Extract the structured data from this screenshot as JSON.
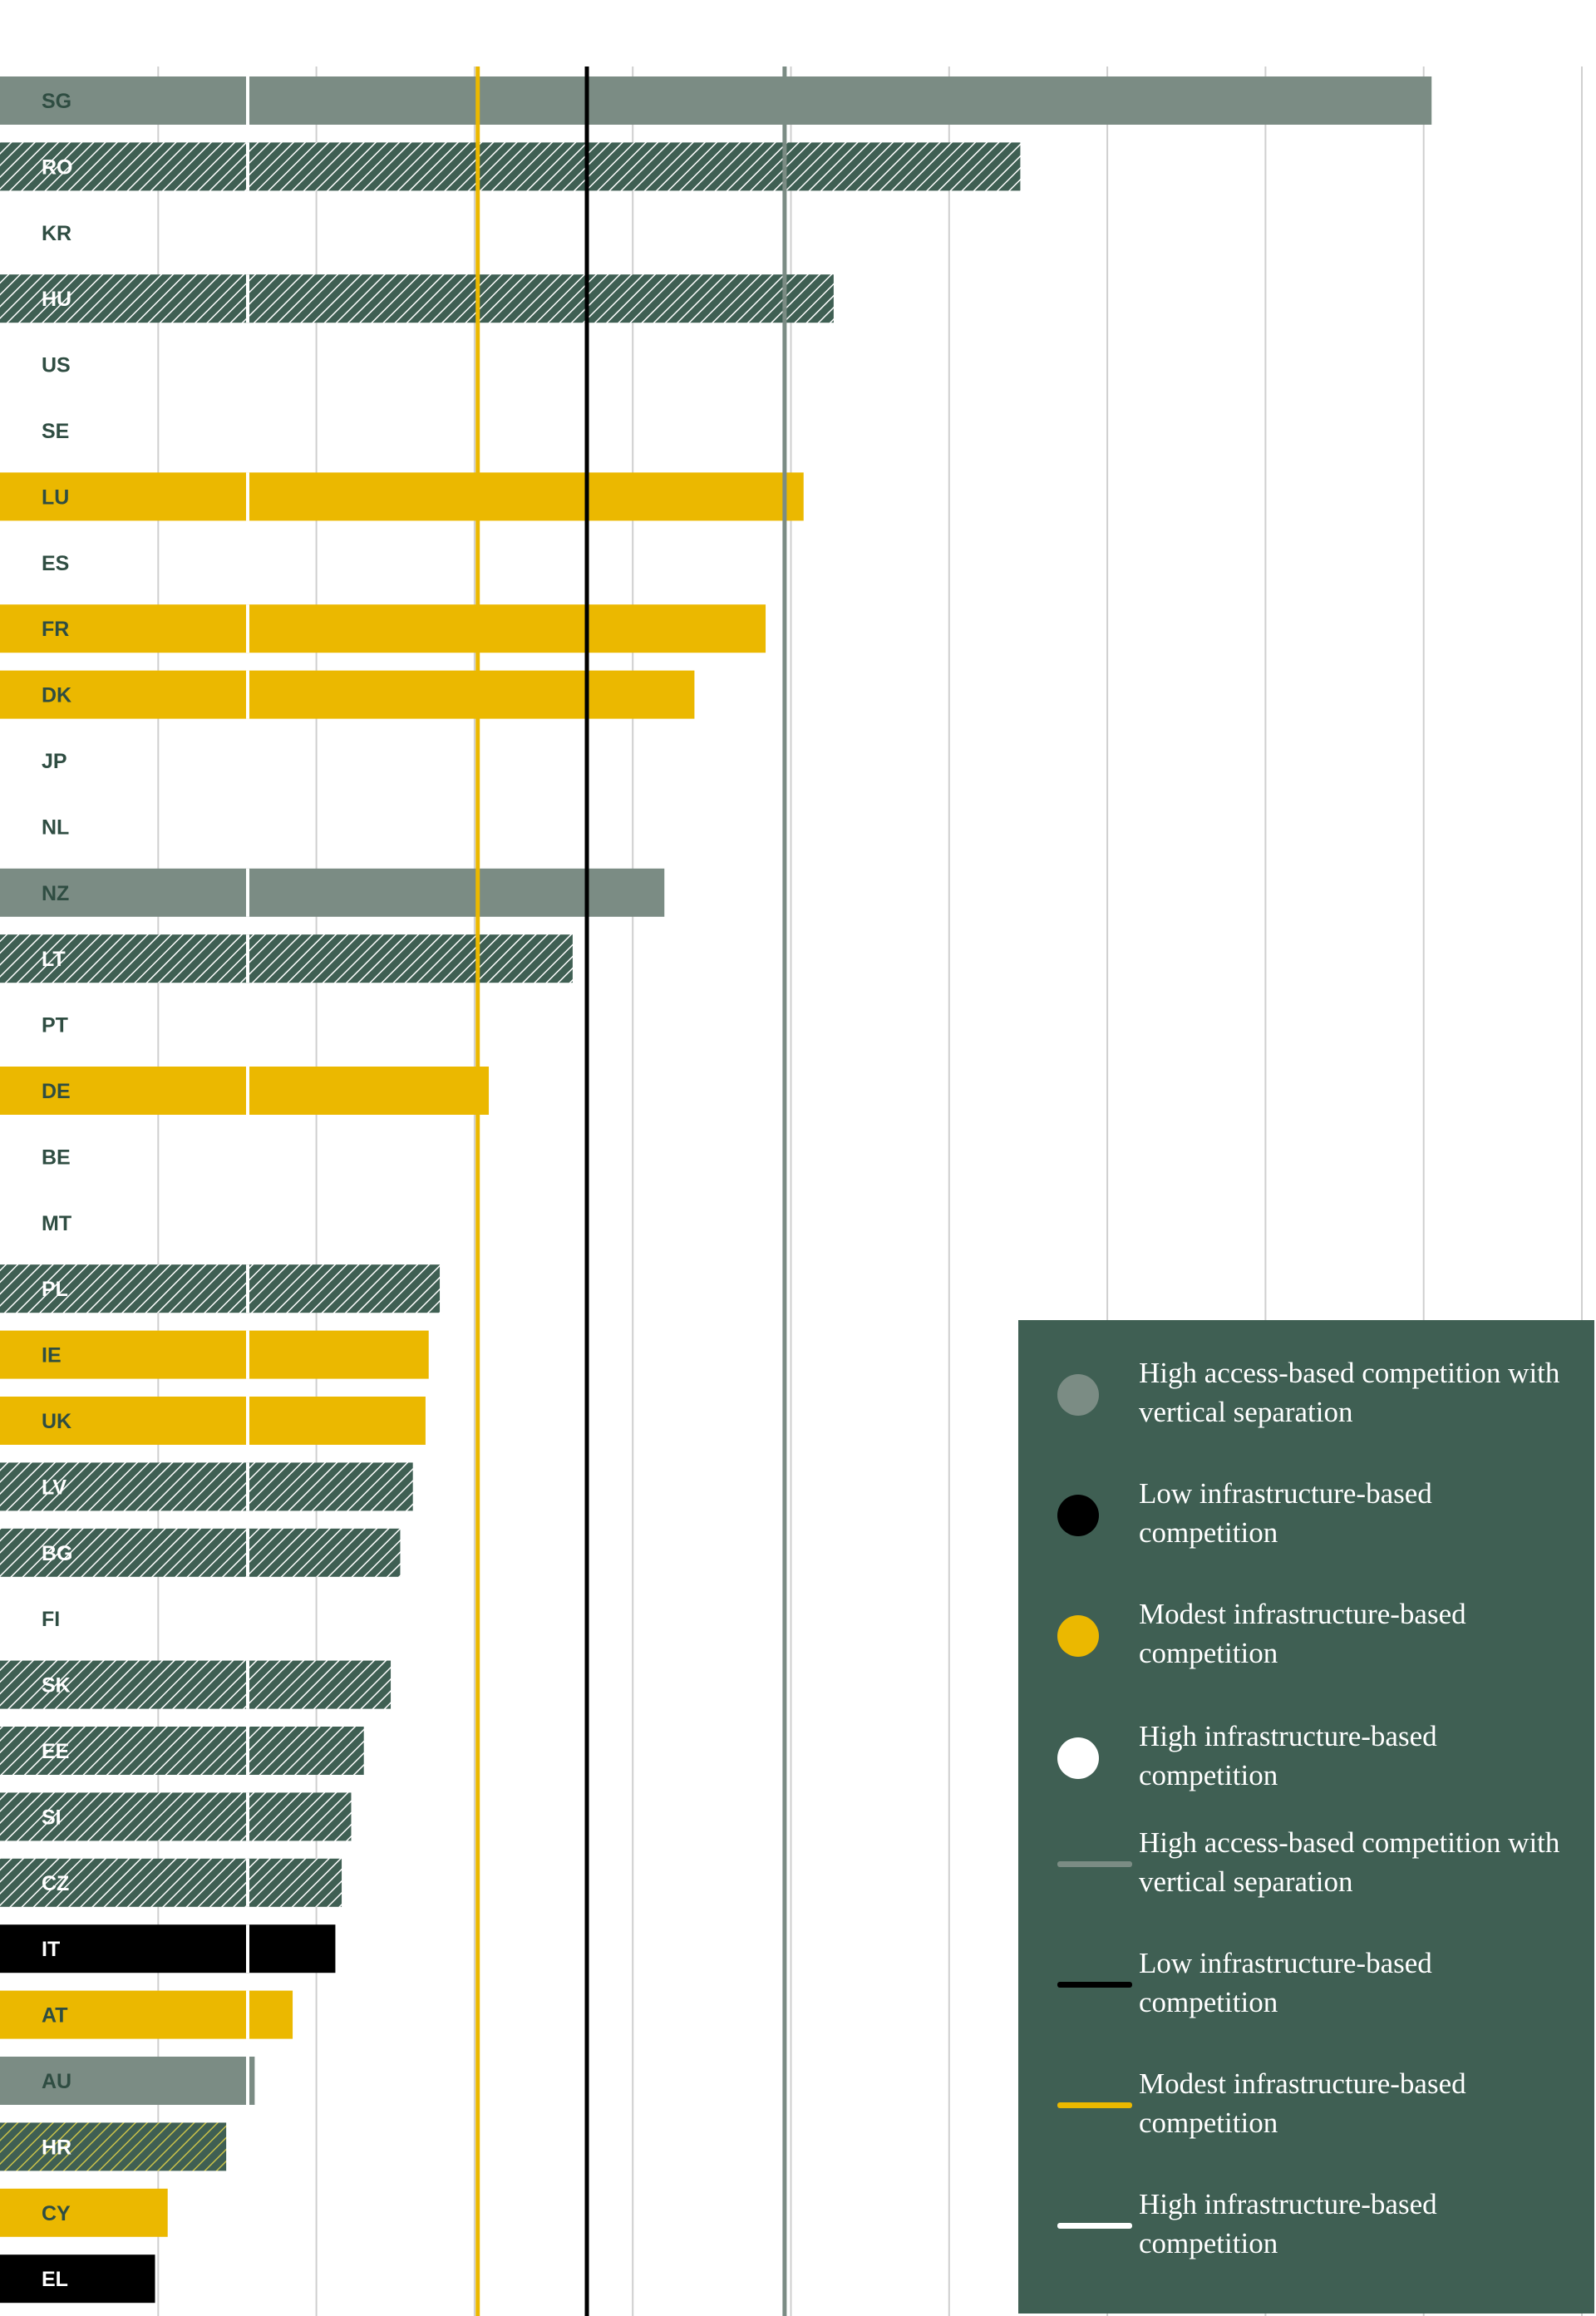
{
  "chart_data": {
    "type": "bar",
    "orientation": "horizontal",
    "categories": [
      "SG",
      "RO",
      "KR",
      "HU",
      "US",
      "SE",
      "LU",
      "ES",
      "FR",
      "DK",
      "JP",
      "NL",
      "NZ",
      "LT",
      "PT",
      "DE",
      "BE",
      "MT",
      "PL",
      "IE",
      "UK",
      "LV",
      "BG",
      "FI",
      "SK",
      "EE",
      "SI",
      "CZ",
      "IT",
      "AT",
      "AU",
      "HR",
      "CY",
      "EL"
    ],
    "values": [
      9.05,
      6.45,
      0,
      5.27,
      0,
      0,
      5.08,
      0,
      4.84,
      4.39,
      0,
      0,
      4.2,
      3.62,
      0,
      3.09,
      0,
      0,
      2.78,
      2.71,
      2.69,
      2.61,
      2.53,
      0,
      2.47,
      2.3,
      2.22,
      2.16,
      2.12,
      1.85,
      1.61,
      1.43,
      1.06,
      0.98
    ],
    "bar_groups": [
      "high-access",
      "low-access",
      "none",
      "low-access",
      "none",
      "none",
      "modest-infra",
      "none",
      "modest-infra",
      "modest-infra",
      "none",
      "none",
      "high-access",
      "low-access",
      "none",
      "modest-infra",
      "none",
      "none",
      "low-access",
      "modest-infra",
      "modest-infra",
      "low-access",
      "low-access",
      "none",
      "low-access",
      "low-access",
      "low-access",
      "low-access",
      "low-infra",
      "modest-infra",
      "high-access",
      "low-access",
      "modest-infra",
      "low-infra"
    ],
    "xlim": [
      0,
      10
    ],
    "gridlines": [
      1,
      2,
      3,
      4,
      5,
      6,
      7,
      8,
      9,
      10
    ],
    "reference_lines": [
      {
        "group": "modest-infra",
        "value": 3.02
      },
      {
        "group": "low-infra",
        "value": 3.71
      },
      {
        "group": "high-access",
        "value": 4.96
      }
    ],
    "legend": [
      {
        "marker": "dot",
        "color": "#7b8c84",
        "label": "High access-based competition with vertical separation"
      },
      {
        "marker": "dot",
        "color": "#000000",
        "label": "Low infrastructure-based competition"
      },
      {
        "marker": "dot",
        "color": "#ebb800",
        "label": "Modest infrastructure-based competition"
      },
      {
        "marker": "dot",
        "color": "#ffffff",
        "label": "High infrastructure-based competition"
      },
      {
        "marker": "line",
        "color": "#7b8c84",
        "label": "High access-based competition with vertical separation"
      },
      {
        "marker": "line",
        "color": "#000000",
        "label": "Low infrastructure-based competition"
      },
      {
        "marker": "line",
        "color": "#ebb800",
        "label": "Modest infrastructure-based competition"
      },
      {
        "marker": "line",
        "color": "#ffffff",
        "label": "High infrastructure-based competition"
      }
    ],
    "legend_position": "bottom-right",
    "grid": true
  },
  "colors": {
    "high-access": "#7b8c84",
    "low-infra": "#000000",
    "modest-infra": "#ebb800",
    "low-access": "#3f5f53",
    "hatch": "#ffffff",
    "hr-hatch": "#c9c24a",
    "legend-bg": "#3f5f53",
    "label-dark": "#2f4d42",
    "label-light": "#ffffff",
    "grid": "#cfcfcf"
  }
}
